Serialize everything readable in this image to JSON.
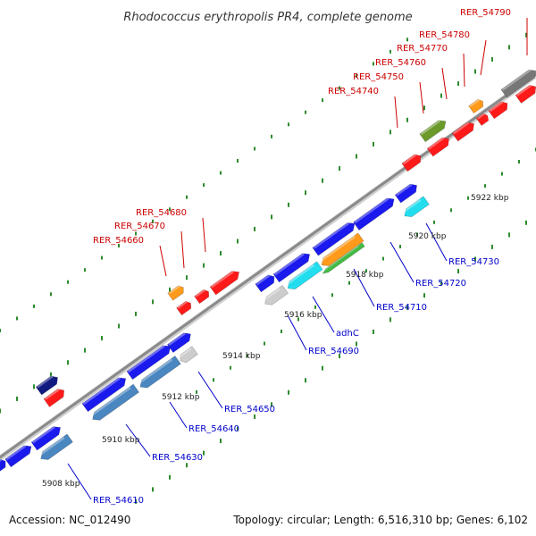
{
  "title": "Rhodococcus erythropolis PR4, complete genome",
  "accession": "Accession: NC_012490",
  "summary": "Topology: circular; Length: 6,516,310 bp; Genes: 6,102",
  "scale": [
    "5908 kbp",
    "5910 kbp",
    "5912 kbp",
    "5914 kbp",
    "5916 kbp",
    "5918 kbp",
    "5920 kbp",
    "5922 kbp"
  ],
  "forward_labels": [
    "RER_54660",
    "RER_54670",
    "RER_54680",
    "RER_54740",
    "RER_54750",
    "RER_54760",
    "RER_54770",
    "RER_54780",
    "RER_54790"
  ],
  "reverse_labels": [
    "RER_54610",
    "RER_54630",
    "RER_54640",
    "RER_54650",
    "RER_54690",
    "adhC",
    "RER_54710",
    "RER_54720",
    "RER_54730"
  ],
  "colors": {
    "forward_label": "#cc0000",
    "reverse_label": "#0000cc",
    "backbone": "#9a9a9a",
    "tick": "#2e8b2e",
    "gene_red": "#ff1a1a",
    "gene_orange": "#ff9a1a",
    "gene_olive": "#6b9a2a",
    "gene_gray": "#777777",
    "gene_blue": "#1a1aee",
    "gene_navy": "#101a80",
    "gene_steel": "#4a86c0",
    "gene_cyan": "#22ddee",
    "gene_lightgray": "#cccccc",
    "gene_green": "#44bb44"
  }
}
